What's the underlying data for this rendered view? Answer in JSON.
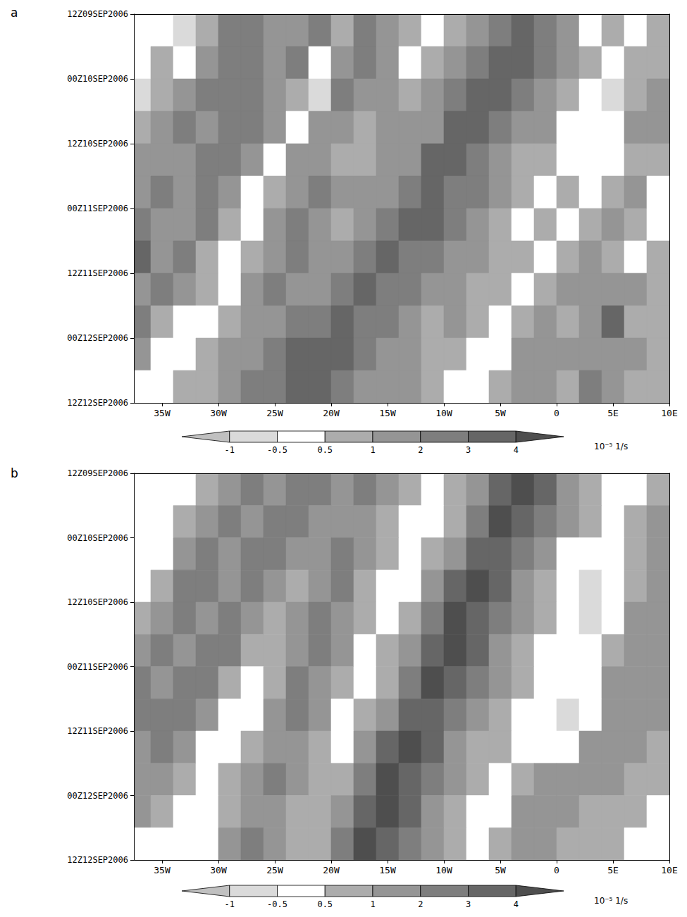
{
  "chart_data": [
    {
      "type": "heatmap",
      "title": "a",
      "x": [
        -37,
        -35,
        -33,
        -31,
        -29,
        -27,
        -25,
        -23,
        -21,
        -19,
        -17,
        -15,
        -13,
        -11,
        -9,
        -7,
        -5,
        -3,
        -1,
        1,
        3,
        5,
        7,
        9
      ],
      "y": [
        3,
        9,
        15,
        21,
        27,
        33,
        39,
        45,
        51,
        57,
        63,
        69
      ],
      "cells": [
        [
          0.4,
          0.2,
          -0.6,
          0.5,
          2.3,
          2.8,
          1.2,
          1.6,
          2.5,
          0.9,
          2.8,
          1.5,
          0.9,
          0.2,
          0.7,
          1.8,
          2.7,
          3.5,
          2.4,
          1.2,
          0.3,
          0.6,
          0.2,
          0.6
        ],
        [
          0.2,
          0.6,
          0.3,
          1.2,
          2.6,
          2.1,
          1.8,
          2.0,
          0.4,
          1.3,
          2.4,
          1.1,
          -0.4,
          0.7,
          1.3,
          2.9,
          3.5,
          3.1,
          2.6,
          1.4,
          0.7,
          0.2,
          0.9,
          0.8
        ],
        [
          -0.7,
          0.5,
          1.6,
          2.0,
          2.1,
          2.5,
          1.6,
          0.9,
          -0.6,
          2.6,
          1.8,
          1.2,
          0.7,
          1.2,
          2.2,
          3.2,
          3.0,
          2.1,
          1.6,
          0.9,
          0.3,
          -0.6,
          0.5,
          1.1
        ],
        [
          0.6,
          1.3,
          2.6,
          1.5,
          2.2,
          2.0,
          1.1,
          0.4,
          1.2,
          1.4,
          0.6,
          1.0,
          1.2,
          1.7,
          3.4,
          3.6,
          2.5,
          1.4,
          1.1,
          0.3,
          0.4,
          -0.4,
          1.3,
          1.2
        ],
        [
          1.1,
          1.6,
          1.5,
          2.4,
          2.2,
          1.2,
          0.4,
          1.5,
          1.8,
          0.8,
          0.9,
          1.3,
          1.9,
          3.1,
          3.5,
          2.6,
          1.7,
          0.8,
          0.6,
          0.2,
          -0.3,
          0.4,
          0.9,
          0.5
        ],
        [
          1.3,
          2.4,
          1.1,
          2.1,
          1.6,
          0.2,
          0.9,
          1.3,
          2.3,
          1.4,
          1.1,
          1.6,
          2.8,
          3.6,
          2.9,
          2.1,
          1.3,
          0.7,
          0.3,
          0.5,
          0.2,
          0.8,
          1.1,
          0.4
        ],
        [
          2.6,
          1.5,
          1.9,
          2.2,
          0.6,
          0.3,
          1.3,
          2.4,
          1.2,
          0.5,
          1.2,
          2.1,
          3.3,
          3.2,
          2.4,
          1.6,
          0.9,
          0.4,
          0.6,
          0.2,
          0.7,
          1.3,
          0.6,
          0.3
        ],
        [
          3.2,
          1.1,
          2.2,
          0.9,
          0.2,
          0.8,
          1.7,
          2.6,
          1.5,
          1.1,
          2.2,
          3.1,
          2.9,
          2.6,
          1.9,
          1.2,
          0.7,
          0.9,
          0.4,
          0.5,
          1.1,
          0.9,
          0.4,
          0.6
        ],
        [
          1.3,
          2.0,
          1.2,
          0.6,
          0.4,
          1.1,
          2.2,
          1.6,
          1.8,
          2.3,
          3.2,
          2.8,
          2.3,
          1.7,
          1.2,
          0.8,
          0.6,
          0.4,
          0.8,
          1.2,
          1.6,
          1.4,
          1.0,
          0.7
        ],
        [
          2.5,
          0.9,
          0.1,
          0.4,
          0.8,
          1.6,
          1.9,
          2.4,
          2.7,
          3.3,
          2.9,
          2.2,
          1.6,
          0.9,
          1.1,
          0.6,
          0.3,
          0.7,
          1.2,
          0.9,
          1.5,
          3.2,
          0.8,
          0.6
        ],
        [
          1.6,
          0.3,
          0.2,
          0.6,
          1.1,
          1.9,
          2.5,
          3.1,
          3.7,
          3.4,
          2.3,
          1.9,
          1.2,
          0.8,
          0.5,
          0.3,
          0.4,
          1.2,
          1.3,
          1.1,
          1.8,
          1.4,
          1.2,
          0.9
        ],
        [
          0.4,
          0.2,
          0.5,
          0.9,
          1.5,
          2.2,
          2.9,
          3.6,
          3.9,
          2.6,
          1.8,
          1.5,
          1.0,
          0.6,
          0.3,
          0.4,
          0.9,
          1.5,
          1.1,
          0.6,
          2.1,
          1.0,
          0.8,
          0.5
        ]
      ],
      "xlim": [
        -37.5,
        10
      ],
      "xticks": [
        {
          "value": -35,
          "label": "35W"
        },
        {
          "value": -30,
          "label": "30W"
        },
        {
          "value": -25,
          "label": "25W"
        },
        {
          "value": -20,
          "label": "20W"
        },
        {
          "value": -15,
          "label": "15W"
        },
        {
          "value": -10,
          "label": "10W"
        },
        {
          "value": -5,
          "label": "5W"
        },
        0,
        {
          "value": 5,
          "label": "5E"
        },
        {
          "value": 10,
          "label": "10E"
        }
      ],
      "ylim": [
        0,
        72
      ],
      "yticks": [
        {
          "value": 0,
          "label": "12Z09SEP2006"
        },
        {
          "value": 12,
          "label": "00Z10SEP2006"
        },
        {
          "value": 24,
          "label": "12Z10SEP2006"
        },
        {
          "value": 36,
          "label": "00Z11SEP2006"
        },
        {
          "value": 48,
          "label": "12Z11SEP2006"
        },
        {
          "value": 60,
          "label": "00Z12SEP2006"
        },
        {
          "value": 72,
          "label": "12Z12SEP2006"
        }
      ],
      "colorbar": {
        "levels": [
          -1,
          -0.5,
          0.5,
          1,
          2,
          3,
          4
        ],
        "colors": [
          "#c0c0c0",
          "#dadada",
          "#ffffff",
          "#acacac",
          "#959595",
          "#7e7e7e",
          "#666666",
          "#4e4e4e"
        ],
        "label": "10⁻⁵ 1/s"
      }
    },
    {
      "type": "heatmap",
      "title": "b",
      "x": [
        -37,
        -35,
        -33,
        -31,
        -29,
        -27,
        -25,
        -23,
        -21,
        -19,
        -17,
        -15,
        -13,
        -11,
        -9,
        -7,
        -5,
        -3,
        -1,
        1,
        3,
        5,
        7,
        9
      ],
      "y": [
        3,
        9,
        15,
        21,
        27,
        33,
        39,
        45,
        51,
        57,
        63,
        69
      ],
      "cells": [
        [
          0.3,
          0.3,
          0.3,
          0.7,
          1.9,
          2.1,
          1.5,
          2.6,
          2.2,
          1.5,
          2.1,
          1.3,
          0.5,
          0.3,
          0.5,
          1.4,
          3.3,
          4.0,
          3.0,
          1.7,
          0.7,
          0.4,
          0.4,
          0.9
        ],
        [
          0.3,
          0.3,
          0.5,
          1.5,
          2.3,
          1.5,
          2.3,
          2.5,
          1.2,
          1.8,
          1.9,
          0.8,
          0.4,
          0.4,
          0.9,
          2.6,
          4.1,
          3.5,
          2.2,
          1.0,
          0.5,
          0.4,
          0.6,
          1.2
        ],
        [
          0.3,
          0.4,
          1.2,
          2.3,
          1.7,
          2.0,
          2.7,
          1.2,
          1.2,
          2.1,
          1.4,
          0.5,
          0.3,
          0.6,
          1.7,
          3.7,
          3.9,
          2.7,
          1.4,
          0.4,
          -0.1,
          0.1,
          0.7,
          1.4
        ],
        [
          0.4,
          0.9,
          2.1,
          2.0,
          1.8,
          2.8,
          1.5,
          0.7,
          1.7,
          2.0,
          0.9,
          0.4,
          0.4,
          1.1,
          3.0,
          4.1,
          3.3,
          1.9,
          0.8,
          -0.1,
          -0.8,
          -0.1,
          0.9,
          1.6
        ],
        [
          0.7,
          1.9,
          2.2,
          1.6,
          2.7,
          1.9,
          0.6,
          1.0,
          2.1,
          1.6,
          0.6,
          0.4,
          0.7,
          2.1,
          4.0,
          3.8,
          2.5,
          1.2,
          0.5,
          -0.2,
          -0.8,
          0,
          1.2,
          1.6
        ],
        [
          1.5,
          2.3,
          1.6,
          2.5,
          2.3,
          0.7,
          0.6,
          1.6,
          2.1,
          1.0,
          0.4,
          0.5,
          1.4,
          3.4,
          4.0,
          3.0,
          1.7,
          0.8,
          0.4,
          0.1,
          -0.1,
          0.6,
          1.4,
          1.5
        ],
        [
          2.3,
          1.8,
          2.2,
          2.6,
          0.9,
          0.4,
          0.9,
          2.0,
          1.7,
          0.6,
          0.4,
          0.9,
          2.6,
          4.1,
          3.6,
          2.2,
          1.0,
          0.5,
          0.1,
          -0.2,
          0.2,
          1.0,
          1.6,
          1.3
        ],
        [
          2.0,
          2.0,
          2.8,
          1.3,
          0.4,
          0.4,
          1.1,
          2.1,
          1.1,
          0.4,
          0.6,
          1.7,
          3.7,
          3.9,
          2.8,
          1.4,
          0.7,
          0.3,
          -0.2,
          -0.6,
          0.4,
          1.5,
          1.6,
          1.0
        ],
        [
          1.0,
          2.3,
          1.4,
          0.4,
          0.4,
          0.8,
          1.9,
          1.8,
          0.7,
          0.4,
          1.1,
          3.0,
          4.1,
          3.3,
          1.9,
          0.9,
          0.5,
          0.3,
          0,
          0.3,
          1.2,
          1.7,
          1.5,
          0.8
        ],
        [
          1.8,
          1.4,
          0.5,
          0.3,
          0.5,
          1.3,
          2.1,
          1.2,
          0.5,
          0.7,
          2.1,
          4.0,
          3.8,
          2.5,
          1.2,
          0.6,
          0.4,
          0.5,
          1.1,
          1.5,
          1.3,
          1.2,
          0.9,
          0.5
        ],
        [
          1.3,
          0.5,
          0.3,
          0.3,
          0.7,
          1.8,
          1.9,
          0.8,
          0.5,
          1.4,
          3.4,
          4.0,
          3.0,
          1.7,
          0.8,
          0.4,
          0.4,
          1.0,
          1.9,
          1.4,
          0.9,
          0.8,
          0.6,
          0.4
        ],
        [
          0.3,
          0.3,
          0.3,
          0.4,
          1.2,
          2.1,
          1.4,
          0.5,
          0.9,
          2.6,
          4.1,
          3.6,
          2.2,
          1.0,
          0.5,
          0.4,
          0.8,
          1.8,
          1.6,
          0.8,
          0.7,
          0.7,
          0.4,
          0.3
        ]
      ],
      "xlim": [
        -37.5,
        10
      ],
      "xticks": [
        {
          "value": -35,
          "label": "35W"
        },
        {
          "value": -30,
          "label": "30W"
        },
        {
          "value": -25,
          "label": "25W"
        },
        {
          "value": -20,
          "label": "20W"
        },
        {
          "value": -15,
          "label": "15W"
        },
        {
          "value": -10,
          "label": "10W"
        },
        {
          "value": -5,
          "label": "5W"
        },
        0,
        {
          "value": 5,
          "label": "5E"
        },
        {
          "value": 10,
          "label": "10E"
        }
      ],
      "ylim": [
        0,
        72
      ],
      "yticks": [
        {
          "value": 0,
          "label": "12Z09SEP2006"
        },
        {
          "value": 12,
          "label": "00Z10SEP2006"
        },
        {
          "value": 24,
          "label": "12Z10SEP2006"
        },
        {
          "value": 36,
          "label": "00Z11SEP2006"
        },
        {
          "value": 48,
          "label": "12Z11SEP2006"
        },
        {
          "value": 60,
          "label": "00Z12SEP2006"
        },
        {
          "value": 72,
          "label": "12Z12SEP2006"
        }
      ],
      "colorbar": {
        "levels": [
          -1,
          -0.5,
          0.5,
          1,
          2,
          3,
          4
        ],
        "colors": [
          "#c0c0c0",
          "#dadada",
          "#ffffff",
          "#acacac",
          "#959595",
          "#7e7e7e",
          "#666666",
          "#4e4e4e"
        ],
        "label": "10⁻⁵ 1/s"
      }
    }
  ]
}
